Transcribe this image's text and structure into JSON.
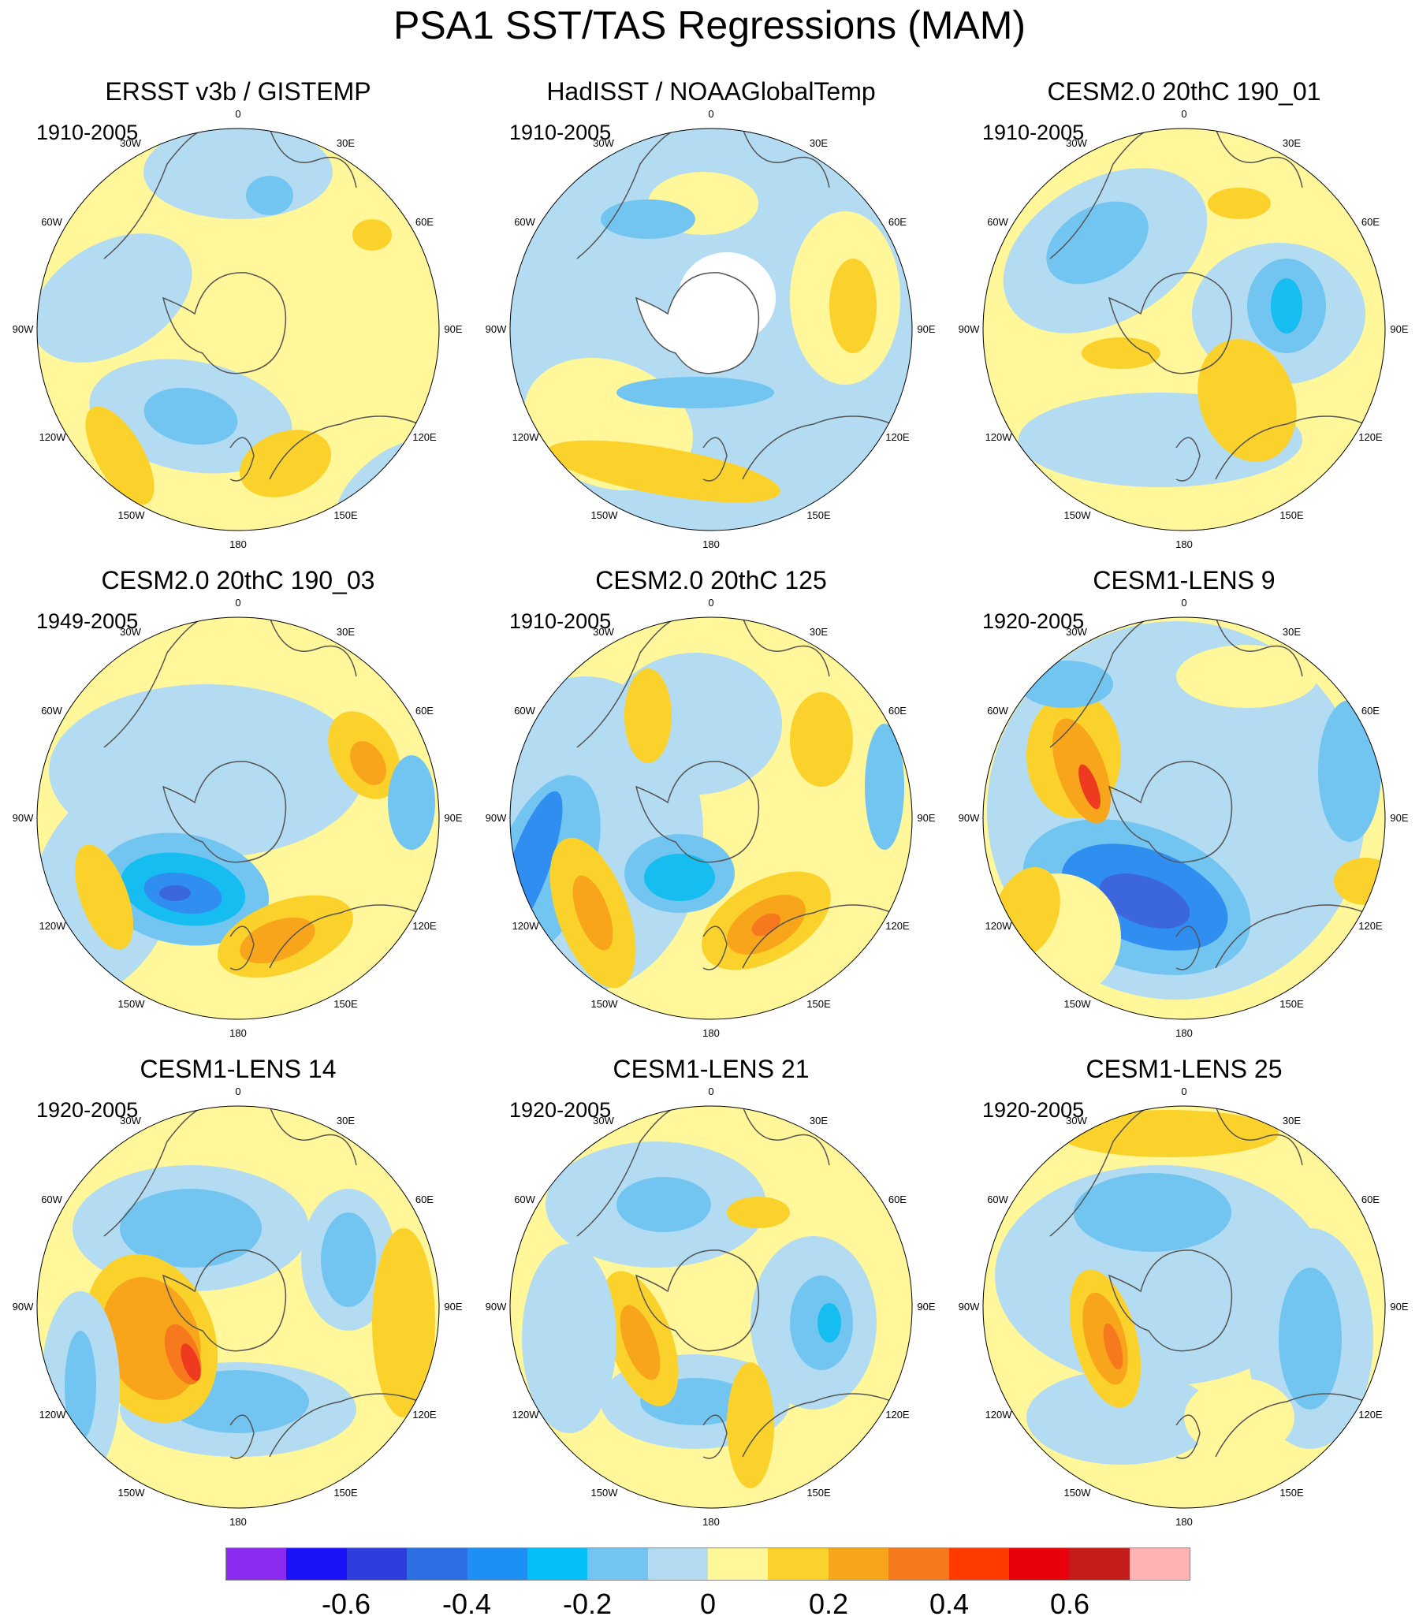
{
  "title": "PSA1 SST/TAS Regressions (MAM)",
  "colors": {
    "water_light_blue": "#b3dcf2",
    "light_yellow": "#fff799",
    "gold": "#fbd22b",
    "orange": "#f9a51b",
    "dark_orange": "#f7791e",
    "red_orange": "#ee3a1f",
    "sky_blue": "#72c5f0",
    "cyan_blue": "#16bdf0",
    "mid_blue": "#2f8ef0",
    "blue": "#3c67dc",
    "land_outline": "#555555"
  },
  "colorbar": {
    "colors": [
      "#8b2bf0",
      "#1b12f7",
      "#2e3edd",
      "#2f6fe6",
      "#1e8ff4",
      "#05c0f6",
      "#72c5f0",
      "#b3dcf2",
      "#fff799",
      "#fbd22b",
      "#f9a51b",
      "#f7791e",
      "#ff3b00",
      "#e8000b",
      "#c41b1b",
      "#ffb3b3"
    ],
    "tick_labels": [
      "-0.6",
      "-0.4",
      "-0.2",
      "0",
      "0.2",
      "0.4",
      "0.6"
    ]
  },
  "longitude_labels": [
    "0",
    "30E",
    "60E",
    "90E",
    "120E",
    "150E",
    "180",
    "150W",
    "120W",
    "90W",
    "60W",
    "30W"
  ],
  "panels": [
    {
      "title": "ERSST v3b / GISTEMP",
      "period": "1910-2005"
    },
    {
      "title": "HadISST / NOAAGlobalTemp",
      "period": "1910-2005"
    },
    {
      "title": "CESM2.0 20thC 190_01",
      "period": "1910-2005"
    },
    {
      "title": "CESM2.0 20thC 190_03",
      "period": "1949-2005"
    },
    {
      "title": "CESM2.0 20thC 125",
      "period": "1910-2005"
    },
    {
      "title": "CESM1-LENS 9",
      "period": "1920-2005"
    },
    {
      "title": "CESM1-LENS 14",
      "period": "1920-2005"
    },
    {
      "title": "CESM1-LENS 21",
      "period": "1920-2005"
    },
    {
      "title": "CESM1-LENS 25",
      "period": "1920-2005"
    }
  ]
}
